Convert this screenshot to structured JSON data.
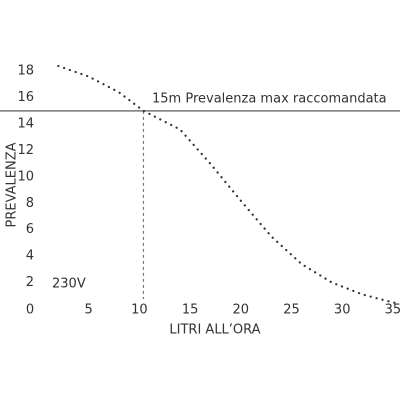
{
  "chart_data": {
    "type": "line",
    "x_label": "LITRI ALL’ORA",
    "y_label": "PREVALENZA",
    "annotation": "15m Prevalenza max raccomandata",
    "voltage_label": "230V",
    "max_head": 15,
    "max_head_flow": 10.4,
    "x": [
      2,
      5,
      8,
      10.4,
      14,
      17,
      20,
      23,
      26,
      29,
      32,
      35,
      35.7
    ],
    "series": [
      {
        "name": "230V",
        "color": "#333333",
        "values": [
          18.4,
          17.6,
          16.4,
          15,
          13.6,
          11,
          8.2,
          5.5,
          3.4,
          2,
          1.1,
          0.5,
          0.4
        ]
      }
    ],
    "reference_color": "#777777",
    "xlim": [
      0,
      35.7
    ],
    "ylim": [
      0,
      18.7
    ],
    "xticks": [
      0,
      5,
      10,
      15,
      20,
      25,
      30,
      35
    ],
    "yticks": [
      2,
      4,
      6,
      8,
      10,
      12,
      14,
      16,
      18
    ],
    "grid": false
  }
}
